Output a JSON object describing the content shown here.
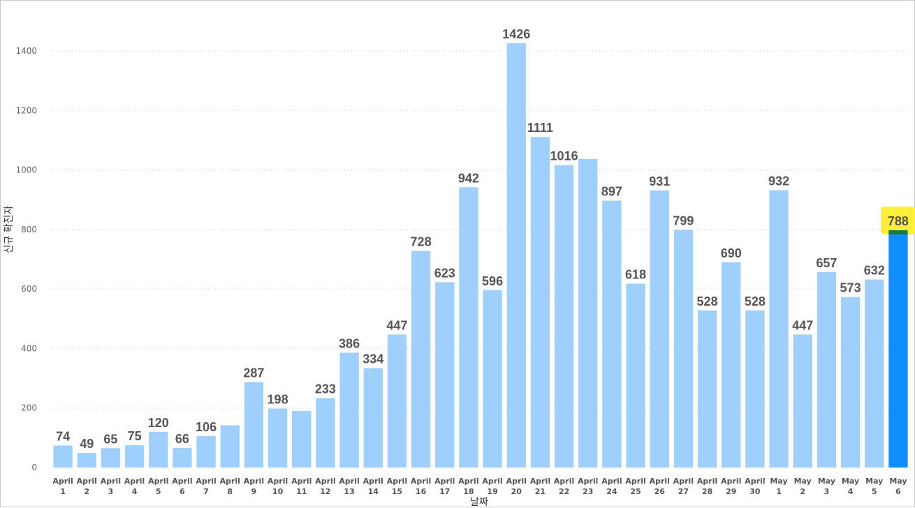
{
  "chart_data": {
    "type": "bar",
    "title": "",
    "xlabel": "날짜",
    "ylabel": "신규 확진자",
    "ylim": [
      0,
      1450
    ],
    "yticks": [
      0,
      200,
      400,
      600,
      800,
      1000,
      1200,
      1400
    ],
    "grid": true,
    "categories": [
      [
        "April",
        "1"
      ],
      [
        "April",
        "2"
      ],
      [
        "April",
        "3"
      ],
      [
        "April",
        "4"
      ],
      [
        "April",
        "5"
      ],
      [
        "April",
        "6"
      ],
      [
        "April",
        "7"
      ],
      [
        "April",
        "8"
      ],
      [
        "April",
        "9"
      ],
      [
        "April",
        "10"
      ],
      [
        "April",
        "11"
      ],
      [
        "April",
        "12"
      ],
      [
        "April",
        "13"
      ],
      [
        "April",
        "14"
      ],
      [
        "April",
        "15"
      ],
      [
        "April",
        "16"
      ],
      [
        "April",
        "17"
      ],
      [
        "April",
        "18"
      ],
      [
        "April",
        "19"
      ],
      [
        "April",
        "20"
      ],
      [
        "April",
        "21"
      ],
      [
        "April",
        "22"
      ],
      [
        "April",
        "23"
      ],
      [
        "April",
        "24"
      ],
      [
        "April",
        "25"
      ],
      [
        "April",
        "26"
      ],
      [
        "April",
        "27"
      ],
      [
        "April",
        "28"
      ],
      [
        "April",
        "29"
      ],
      [
        "April",
        "30"
      ],
      [
        "May",
        "1"
      ],
      [
        "May",
        "2"
      ],
      [
        "May",
        "3"
      ],
      [
        "May",
        "4"
      ],
      [
        "May",
        "5"
      ],
      [
        "May",
        "6"
      ]
    ],
    "values": [
      74,
      49,
      65,
      75,
      120,
      66,
      106,
      142,
      287,
      198,
      190,
      233,
      386,
      334,
      447,
      728,
      623,
      942,
      596,
      1426,
      1111,
      1016,
      1037,
      897,
      618,
      931,
      799,
      528,
      690,
      528,
      932,
      447,
      657,
      573,
      632,
      788
    ],
    "data_labels": [
      "74",
      "49",
      "65",
      "75",
      "120",
      "66",
      "106",
      "",
      "287",
      "198",
      "",
      "233",
      "386",
      "334",
      "447",
      "728",
      "623",
      "942",
      "596",
      "1426",
      "1111",
      "1016",
      "",
      "897",
      "618",
      "931",
      "799",
      "528",
      "690",
      "528",
      "932",
      "447",
      "657",
      "573",
      "632",
      "788"
    ],
    "highlight_index": 35,
    "colors": {
      "bar": "#9fd0fd",
      "highlight_bar": "#118dff",
      "highlight_label_bg": "#ffef3a",
      "highlight_marker": "#1a7a3a",
      "label": "#555555",
      "grid": "#c8c8c8"
    }
  }
}
